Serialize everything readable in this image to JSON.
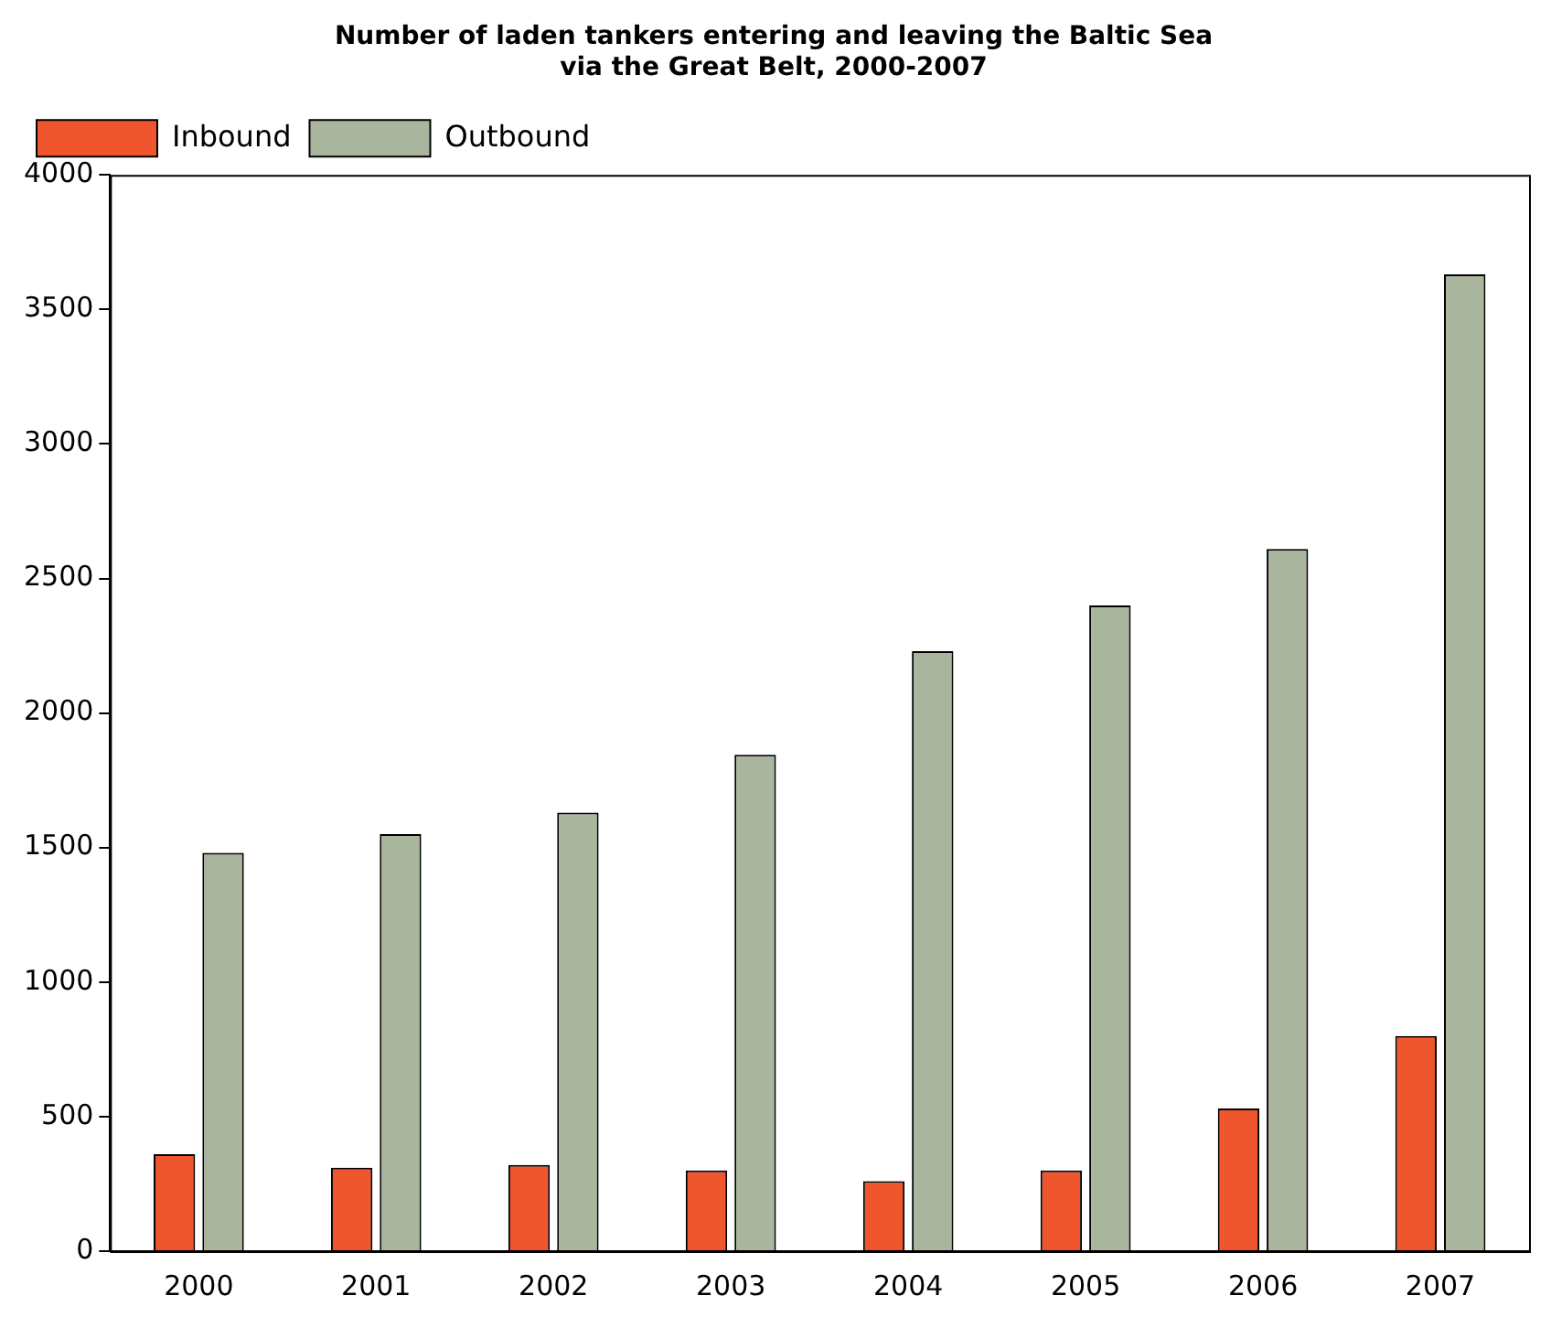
{
  "chart_data": {
    "type": "bar",
    "title": [
      "Number of laden tankers entering and leaving the Baltic Sea",
      "via the Great Belt, 2000-2007"
    ],
    "categories": [
      "2000",
      "2001",
      "2002",
      "2003",
      "2004",
      "2005",
      "2006",
      "2007"
    ],
    "series": [
      {
        "name": "Inbound",
        "color": "#f0562e",
        "values": [
          360,
          310,
          320,
          300,
          260,
          300,
          530,
          800
        ]
      },
      {
        "name": "Outbound",
        "color": "#a9b59d",
        "values": [
          1480,
          1550,
          1630,
          1845,
          2230,
          2400,
          2610,
          3630
        ]
      }
    ],
    "ylim": [
      0,
      4000
    ],
    "yticks": [
      0,
      500,
      1000,
      1500,
      2000,
      2500,
      3000,
      3500,
      4000
    ],
    "grid": false,
    "legend": "top left"
  }
}
